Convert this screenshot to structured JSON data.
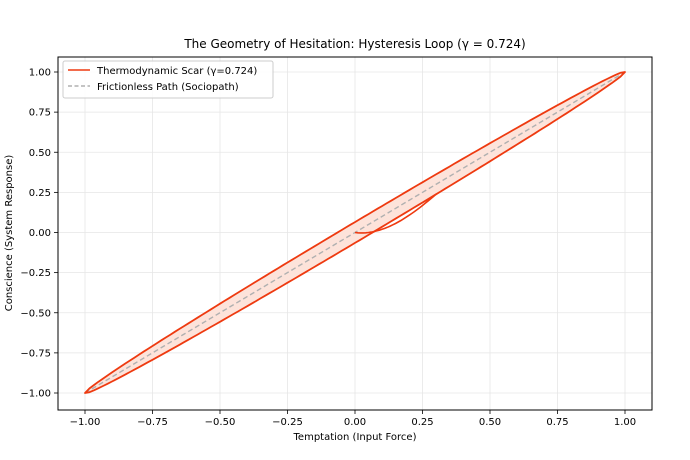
{
  "chart_data": {
    "type": "line",
    "title": "The Geometry of Hesitation: Hysteresis Loop (γ = 0.724)",
    "xlabel": "Temptation (Input Force)",
    "ylabel": "Conscience (System Response)",
    "xlim": [
      -1.1,
      1.1
    ],
    "ylim": [
      -1.1,
      1.1
    ],
    "xticks": [
      "−1.00",
      "−0.75",
      "−0.50",
      "−0.25",
      "0.00",
      "0.25",
      "0.50",
      "0.75",
      "1.00"
    ],
    "yticks": [
      "−1.00",
      "−0.75",
      "−0.50",
      "−0.25",
      "0.00",
      "0.25",
      "0.50",
      "0.75",
      "1.00"
    ],
    "grid": true,
    "legend_position": "upper left",
    "series": [
      {
        "name": "Thermodynamic Scar (γ=0.724)",
        "style": "solid",
        "color": "#ee3a10",
        "fill": "#fde3da",
        "description": "Closed hysteresis loop between (-1,-1) and (1,1); upper branch ≈ x + 0.065·√(1−x²), lower branch ≈ x − 0.065·√(1−x²); initial curve from origin to lower branch",
        "x": [
          0.0,
          0.1,
          0.25,
          0.5,
          0.75,
          1.0,
          0.75,
          0.5,
          0.25,
          0.0,
          -0.25,
          -0.5,
          -0.75,
          -1.0,
          -0.75,
          -0.5,
          -0.25,
          0.0,
          0.25,
          0.5,
          0.75,
          1.0
        ],
        "y": [
          0.0,
          0.03,
          0.19,
          0.44,
          0.71,
          1.0,
          0.79,
          0.56,
          0.31,
          0.065,
          -0.19,
          -0.44,
          -0.71,
          -1.0,
          -0.79,
          -0.56,
          -0.31,
          -0.065,
          0.19,
          0.44,
          0.71,
          1.0
        ]
      },
      {
        "name": "Frictionless Path (Sociopath)",
        "style": "dashed",
        "color": "#b0b0b0",
        "x": [
          -1.0,
          1.0
        ],
        "y": [
          -1.0,
          1.0
        ]
      }
    ]
  },
  "legend": {
    "items": [
      {
        "label": "Thermodynamic Scar (γ=0.724)"
      },
      {
        "label": "Frictionless Path (Sociopath)"
      }
    ]
  }
}
